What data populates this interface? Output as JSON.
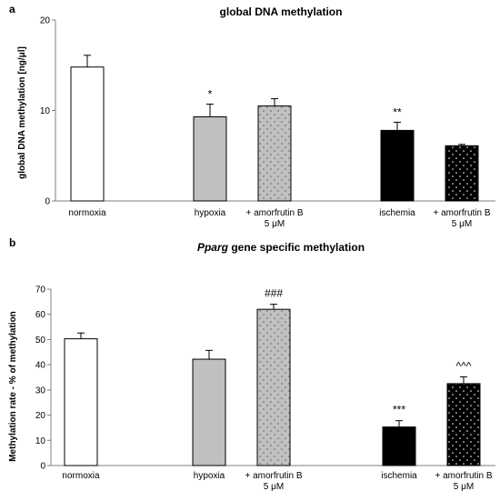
{
  "panels": [
    {
      "letter": "a"
    },
    {
      "letter": "b"
    }
  ],
  "colors": {
    "white_bar": "#ffffff",
    "gray_bar": "#c0c0c0",
    "black_bar": "#000000",
    "axis": "#7f7f7f"
  },
  "chart_data": [
    {
      "type": "bar",
      "title": "global DNA methylation",
      "ylabel": "global DNA methylation [ng/μl]",
      "xlabel": "",
      "ylim": [
        0,
        20
      ],
      "yticks": [
        0,
        10,
        20
      ],
      "grid": false,
      "categories": [
        {
          "label": [
            "normoxia"
          ],
          "value": 14.8,
          "error": 1.3,
          "fill": "white",
          "significance": ""
        },
        {
          "label": [
            "hypoxia"
          ],
          "value": 9.3,
          "error": 1.4,
          "fill": "gray",
          "significance": "*"
        },
        {
          "label": [
            "+ amorfrutin B",
            "5 μM"
          ],
          "value": 10.5,
          "error": 0.8,
          "fill": "gray-dotted",
          "significance": ""
        },
        {
          "label": [
            "ischemia"
          ],
          "value": 7.8,
          "error": 0.9,
          "fill": "black",
          "significance": "**"
        },
        {
          "label": [
            "+ amorfrutin B",
            "5 μM"
          ],
          "value": 6.1,
          "error": 0.15,
          "fill": "black-dotted",
          "significance": ""
        }
      ]
    },
    {
      "type": "bar",
      "title_italic": "Pparg",
      "title": " gene specific methylation",
      "ylabel": "Methylation rate - % of methylation",
      "xlabel": "",
      "ylim": [
        0,
        70
      ],
      "yticks": [
        0,
        10,
        20,
        30,
        40,
        50,
        60,
        70
      ],
      "grid": false,
      "categories": [
        {
          "label": [
            "normoxia"
          ],
          "value": 50.3,
          "error": 2.3,
          "fill": "white",
          "significance": ""
        },
        {
          "label": [
            "hypoxia"
          ],
          "value": 42.2,
          "error": 3.5,
          "fill": "gray",
          "significance": ""
        },
        {
          "label": [
            "+ amorfrutin B",
            "5 μM"
          ],
          "value": 62.0,
          "error": 2.0,
          "fill": "gray-dotted",
          "significance": "###"
        },
        {
          "label": [
            "ischemia"
          ],
          "value": 15.3,
          "error": 2.5,
          "fill": "black",
          "significance": "***"
        },
        {
          "label": [
            "+ amorfrutin B",
            "5 μM"
          ],
          "value": 32.5,
          "error": 2.7,
          "fill": "black-dotted",
          "significance": "^^^"
        }
      ]
    }
  ]
}
